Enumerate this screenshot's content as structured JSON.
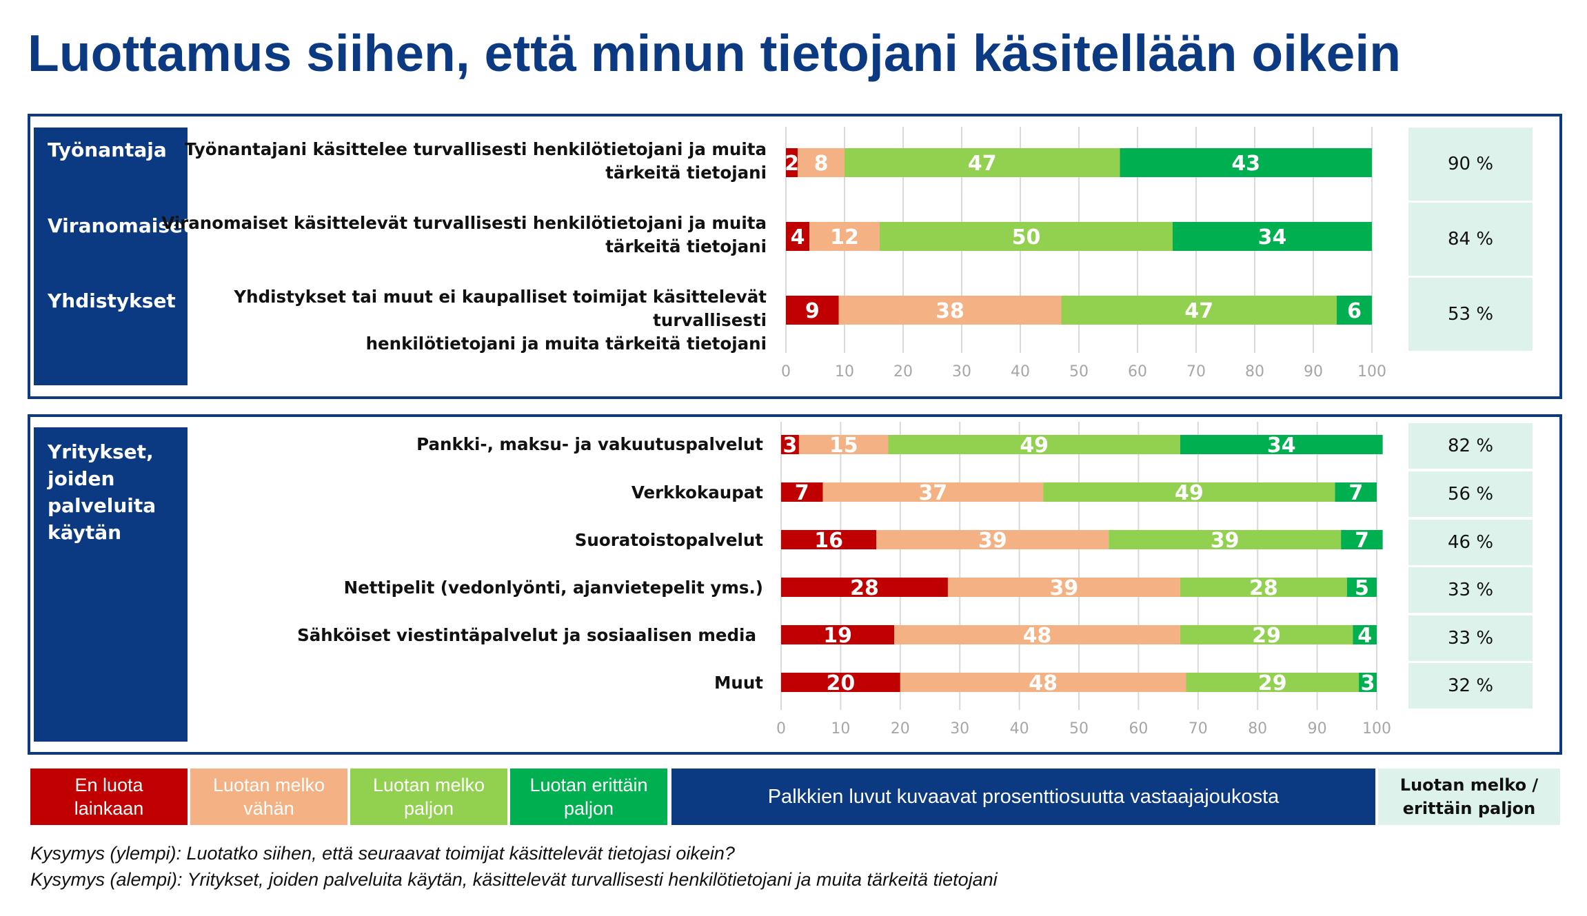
{
  "title": "Luottamus siihen, että minun tietojani käsitellään oikein",
  "colors": {
    "en_luota": "#C00000",
    "melko_vahan": "#F4B183",
    "melko_paljon": "#92D050",
    "erittain_paljon": "#00B050",
    "navy": "#0B3A82",
    "pct_bg": "#DDF2EA"
  },
  "top_panel": {
    "categories": [
      {
        "label": "Työnantaja"
      },
      {
        "label": "Viranomaiset"
      },
      {
        "label": "Yhdistykset"
      }
    ],
    "questions": [
      {
        "line1": "Työnantajani käsittelee turvallisesti henkilötietojani ja muita",
        "line2": "tärkeitä tietojani"
      },
      {
        "line1": "Viranomaiset käsittelevät turvallisesti henkilötietojani ja muita",
        "line2": "tärkeitä tietojani"
      },
      {
        "line1": "Yhdistykset tai muut ei kaupalliset toimijat käsittelevät turvallisesti",
        "line2": "henkilötietojani ja muita tärkeitä tietojani"
      }
    ],
    "totals": [
      "90 %",
      "84 %",
      "53 %"
    ]
  },
  "bottom_panel": {
    "category_lines": [
      "Yritykset,",
      "joiden",
      "palveluita",
      "käytän"
    ],
    "questions": [
      "Pankki-, maksu- ja vakuutuspalvelut",
      "Verkkokaupat",
      "Suoratoistopalvelut",
      "Nettipelit (vedonlyönti, ajanvietepelit yms.)",
      "Sähköiset viestintäpalvelut ja sosiaalisen media",
      "Muut"
    ],
    "totals": [
      "82 %",
      "56 %",
      "46 %",
      "33 %",
      "33 %",
      "32 %"
    ]
  },
  "chart_data": [
    {
      "type": "bar",
      "orientation": "horizontal",
      "stacked": true,
      "categories": [
        "Työnantajani käsittelee turvallisesti henkilötietojani ja muita tärkeitä tietojani",
        "Viranomaiset käsittelevät turvallisesti henkilötietojani ja muita tärkeitä tietojani",
        "Yhdistykset tai muut ei kaupalliset toimijat käsittelevät turvallisesti henkilötietojani ja muita tärkeitä tietojani"
      ],
      "series": [
        {
          "name": "En luota lainkaan",
          "color": "#C00000",
          "values": [
            2,
            4,
            9
          ]
        },
        {
          "name": "Luotan melko vähän",
          "color": "#F4B183",
          "values": [
            8,
            12,
            38
          ]
        },
        {
          "name": "Luotan melko paljon",
          "color": "#92D050",
          "values": [
            47,
            50,
            47
          ]
        },
        {
          "name": "Luotan erittäin paljon",
          "color": "#00B050",
          "values": [
            43,
            34,
            6
          ]
        }
      ],
      "xlim": [
        0,
        100
      ],
      "xticks": [
        0,
        10,
        20,
        30,
        40,
        50,
        60,
        70,
        80,
        90,
        100
      ],
      "grid": true
    },
    {
      "type": "bar",
      "orientation": "horizontal",
      "stacked": true,
      "categories": [
        "Pankki-, maksu- ja vakuutuspalvelut",
        "Verkkokaupat",
        "Suoratoistopalvelut",
        "Nettipelit (vedonlyönti, ajanvietepelit yms.)",
        "Sähköiset viestintäpalvelut ja sosiaalisen media",
        "Muut"
      ],
      "series": [
        {
          "name": "En luota lainkaan",
          "color": "#C00000",
          "values": [
            3,
            7,
            16,
            28,
            19,
            20
          ]
        },
        {
          "name": "Luotan melko vähän",
          "color": "#F4B183",
          "values": [
            15,
            37,
            39,
            39,
            48,
            48
          ]
        },
        {
          "name": "Luotan melko paljon",
          "color": "#92D050",
          "values": [
            49,
            49,
            39,
            28,
            29,
            29
          ]
        },
        {
          "name": "Luotan erittäin paljon",
          "color": "#00B050",
          "values": [
            34,
            7,
            7,
            5,
            4,
            3
          ]
        }
      ],
      "xlim": [
        0,
        100
      ],
      "xticks": [
        0,
        10,
        20,
        30,
        40,
        50,
        60,
        70,
        80,
        90,
        100
      ],
      "grid": true
    }
  ],
  "legend": {
    "items": [
      {
        "line1": "En luota",
        "line2": "lainkaan"
      },
      {
        "line1": "Luotan melko",
        "line2": "vähän"
      },
      {
        "line1": "Luotan melko",
        "line2": "paljon"
      },
      {
        "line1": "Luotan erittäin",
        "line2": "paljon"
      }
    ],
    "note": "Palkkien luvut kuvaavat prosenttiosuutta vastaajajoukosta",
    "total_line1": "Luotan melko /",
    "total_line2": "erittäin paljon"
  },
  "footnotes": [
    "Kysymys (ylempi): Luotatko siihen, että seuraavat toimijat käsittelevät tietojasi oikein?",
    "Kysymys (alempi): Yritykset, joiden palveluita käytän, käsittelevät turvallisesti henkilötietojani ja muita tärkeitä tietojani"
  ]
}
